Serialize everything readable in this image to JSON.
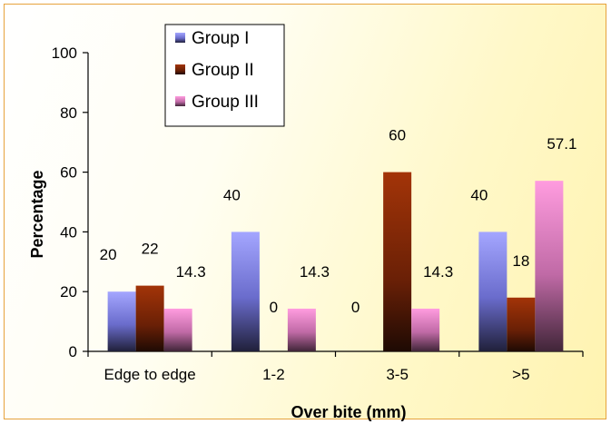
{
  "chart_data": {
    "type": "bar",
    "title": "",
    "xlabel": "Over bite (mm)",
    "ylabel": "Percentage",
    "ylim": [
      0,
      100
    ],
    "yticks": [
      "0",
      "20",
      "40",
      "60",
      "80",
      "100"
    ],
    "categories": [
      "Edge to edge",
      "1-2",
      "3-5",
      ">5"
    ],
    "series": [
      {
        "name": "Group I",
        "values": [
          20,
          40,
          0,
          40
        ],
        "labels": [
          "20",
          "40",
          "0",
          "40"
        ],
        "color": "#9a9cf6"
      },
      {
        "name": "Group II",
        "values": [
          22,
          0,
          60,
          18
        ],
        "labels": [
          "22",
          "0",
          "60",
          "18"
        ],
        "color": "#9c3206"
      },
      {
        "name": "Group III",
        "values": [
          14.3,
          14.3,
          14.3,
          57.1
        ],
        "labels": [
          "14.3",
          "14.3",
          "14.3",
          "57.1"
        ],
        "color": "#f38fd4"
      }
    ],
    "grid": false,
    "legend": "top-center"
  }
}
